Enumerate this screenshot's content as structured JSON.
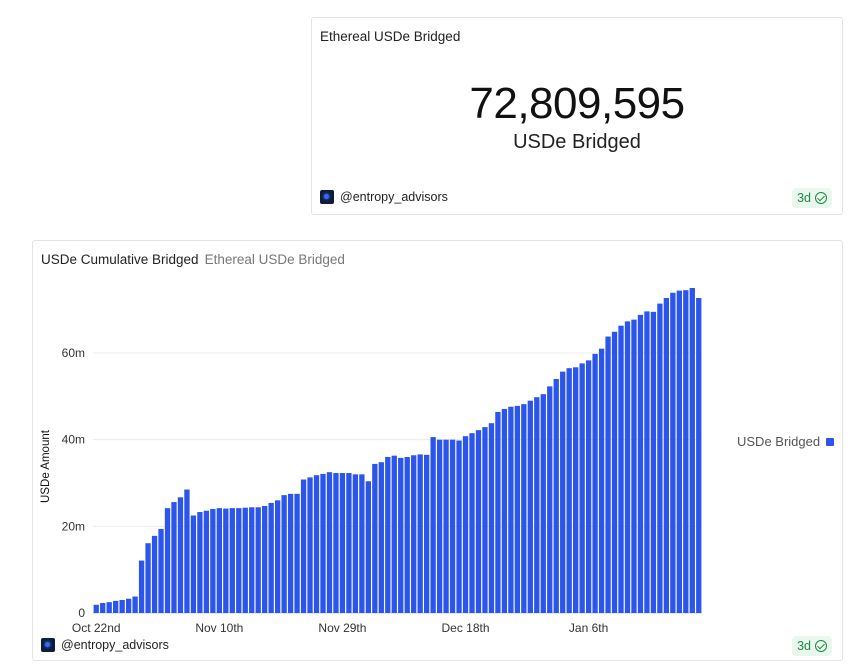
{
  "counter": {
    "title": "Ethereal USDe Bridged",
    "value": "72,809,595",
    "label": "USDe Bridged",
    "author": "@entropy_advisors",
    "badge": "3d"
  },
  "chart_card": {
    "title": "USDe Cumulative Bridged",
    "subtitle": "Ethereal USDe Bridged",
    "author": "@entropy_advisors",
    "badge": "3d"
  },
  "colors": {
    "bar": "#2b55eb",
    "badge_text": "#1e8a45",
    "badge_bg": "#eaf7ee"
  },
  "chart_data": {
    "type": "bar",
    "ylabel": "USDe Amount",
    "xlabel": "",
    "ylim": [
      0,
      75000000
    ],
    "yticks": [
      0,
      20000000,
      40000000,
      60000000
    ],
    "ytick_labels": [
      "0",
      "20m",
      "40m",
      "60m"
    ],
    "xtick_labels": [
      "Oct 22nd",
      "Nov 10th",
      "Nov 29th",
      "Dec 18th",
      "Jan 6th"
    ],
    "xtick_positions": [
      0,
      19,
      38,
      57,
      76
    ],
    "legend": {
      "position": "right",
      "entries": [
        "USDe Bridged"
      ]
    },
    "grid": true,
    "series": [
      {
        "name": "USDe Bridged",
        "values": [
          1900000,
          2300000,
          2500000,
          2800000,
          3000000,
          3300000,
          3800000,
          12100000,
          16100000,
          17800000,
          19400000,
          24200000,
          25600000,
          26700000,
          28500000,
          22500000,
          23300000,
          23600000,
          24000000,
          24200000,
          24100000,
          24200000,
          24200000,
          24300000,
          24400000,
          24400000,
          24700000,
          25400000,
          26000000,
          27200000,
          27500000,
          27500000,
          30800000,
          31300000,
          31800000,
          32100000,
          32500000,
          32300000,
          32300000,
          32300000,
          32000000,
          32000000,
          30400000,
          34400000,
          34800000,
          36000000,
          36300000,
          35800000,
          36000000,
          36400000,
          36600000,
          36500000,
          40600000,
          40000000,
          40000000,
          40000000,
          39800000,
          40800000,
          41500000,
          42200000,
          42900000,
          43800000,
          46400000,
          47100000,
          47600000,
          47800000,
          48200000,
          49000000,
          49800000,
          50500000,
          52300000,
          54000000,
          55700000,
          56500000,
          56700000,
          57600000,
          58300000,
          59800000,
          61000000,
          63800000,
          64900000,
          66300000,
          67300000,
          67700000,
          68800000,
          69600000,
          69500000,
          71400000,
          72700000,
          73900000,
          74400000,
          74500000,
          75000000,
          72700000
        ]
      }
    ]
  }
}
